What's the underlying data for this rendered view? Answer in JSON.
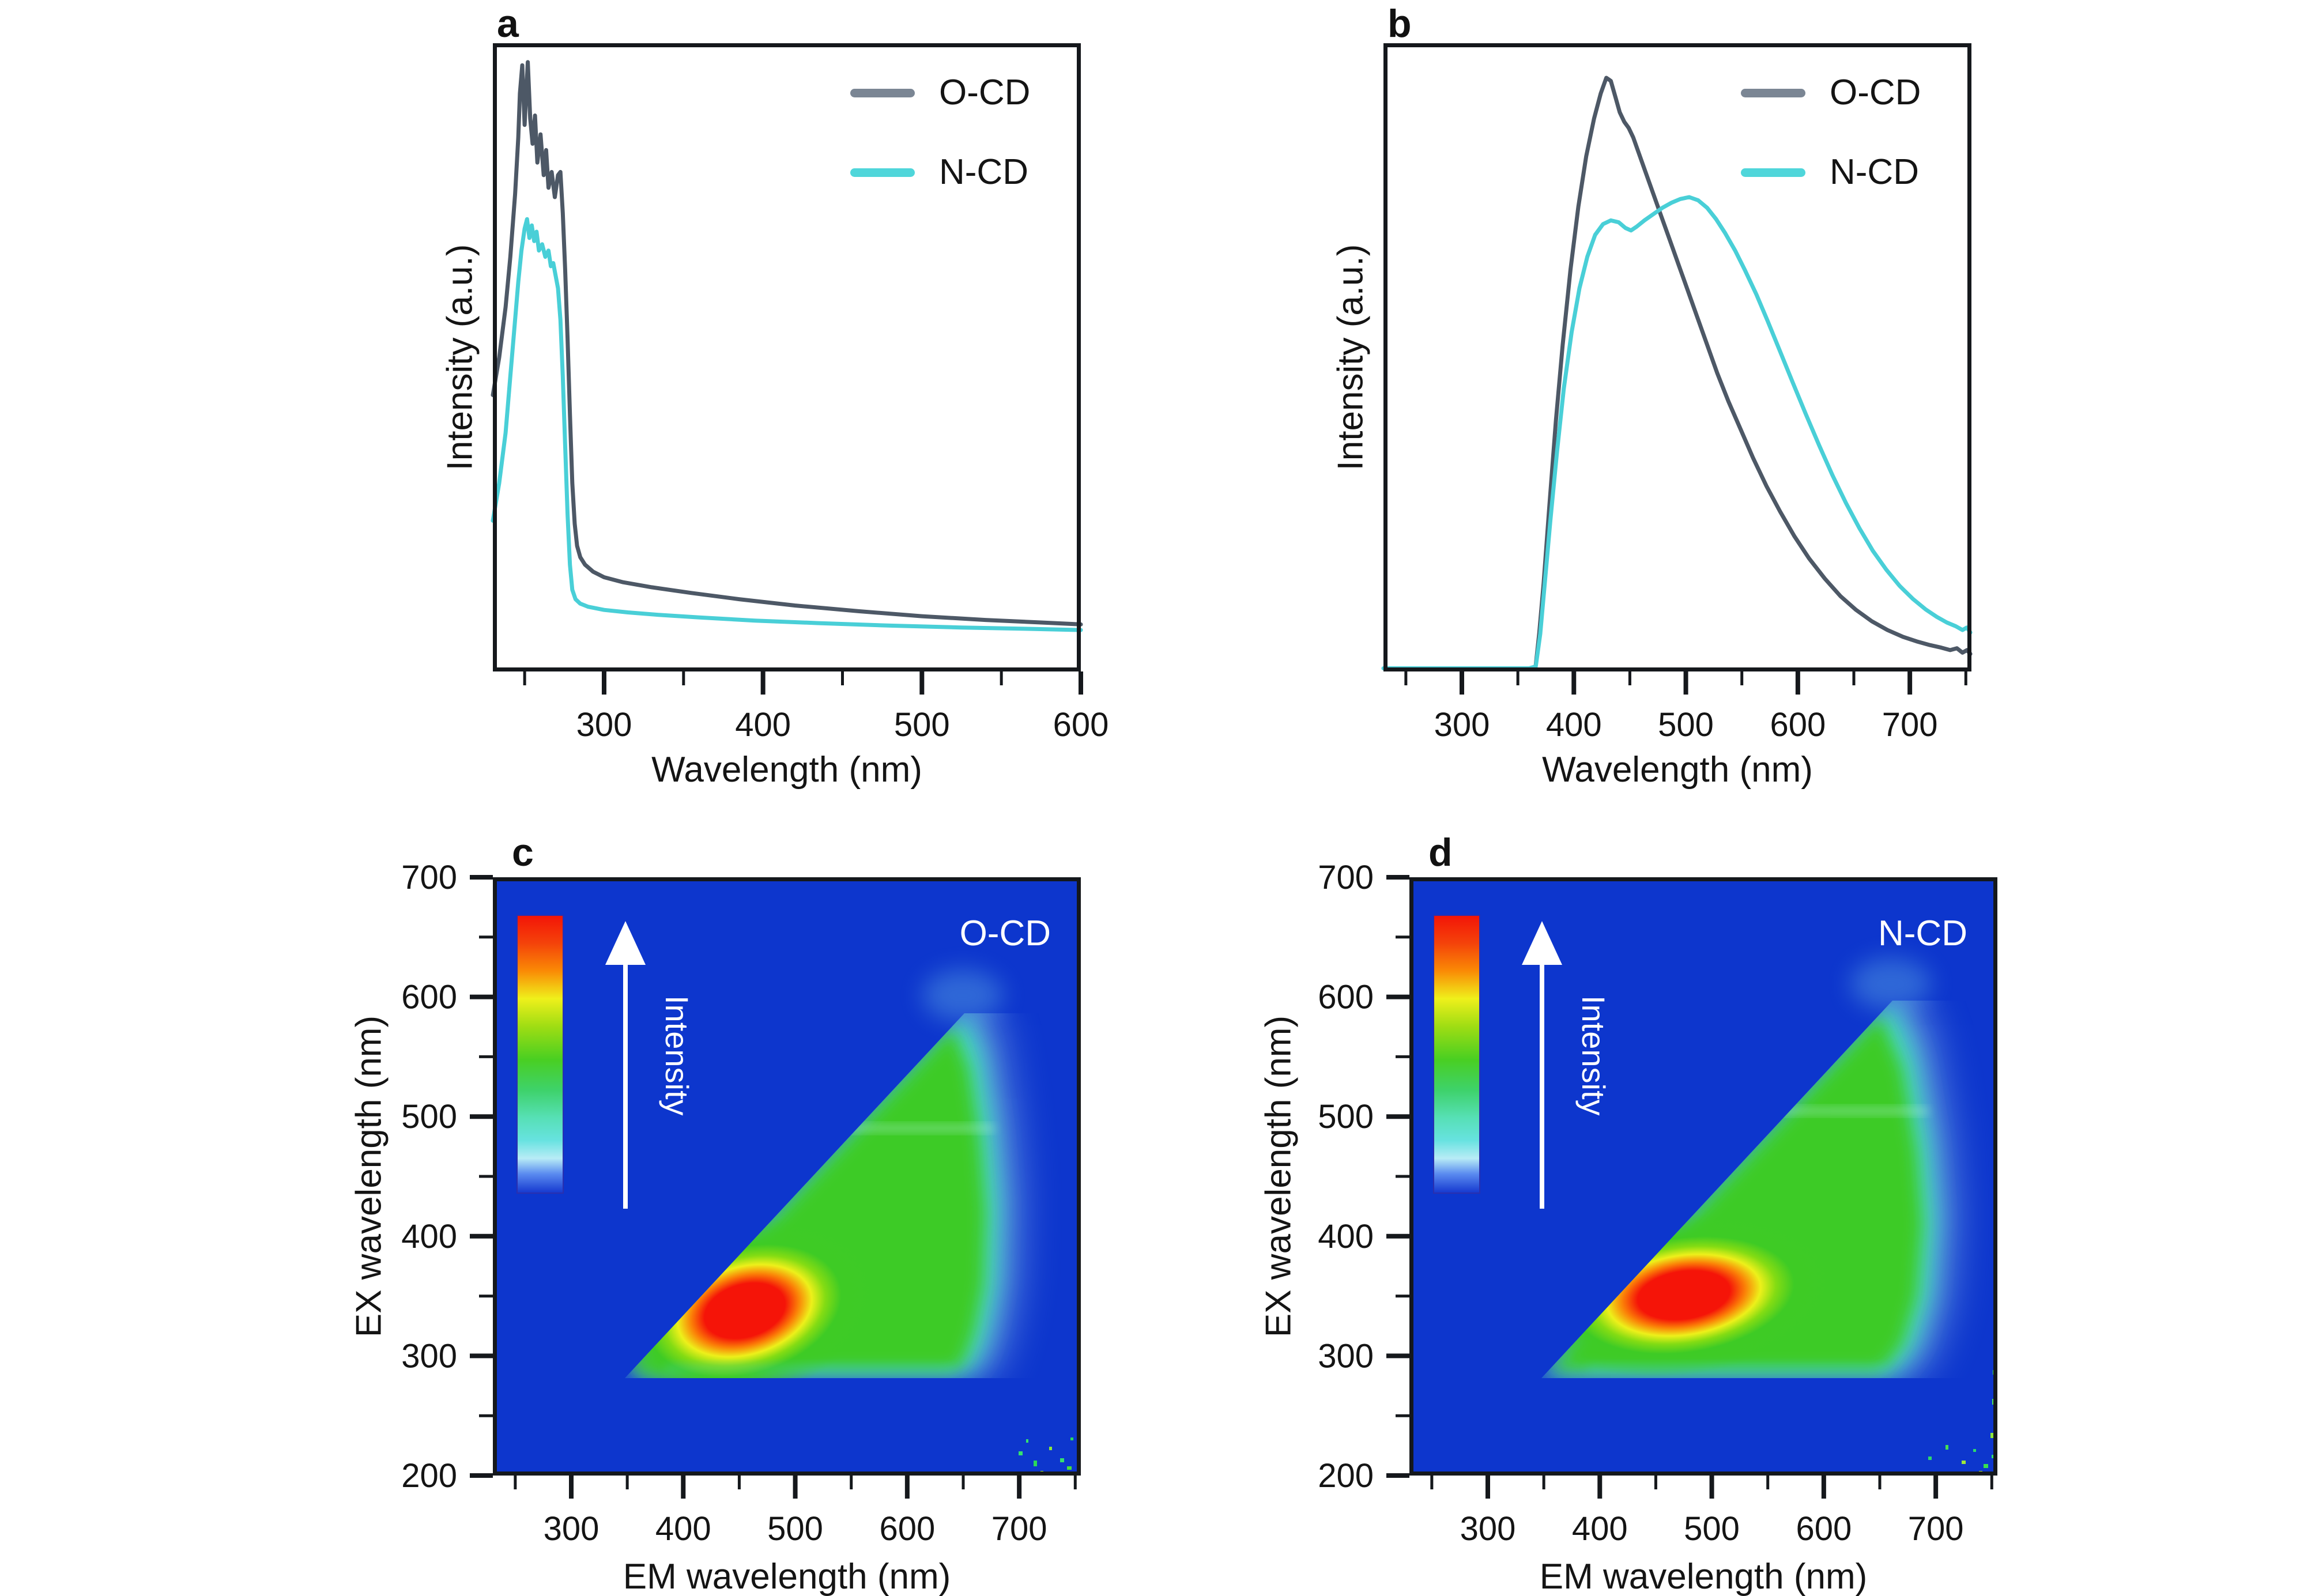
{
  "colors": {
    "background": "#ffffff",
    "axis": "#15181c",
    "text": "#141414",
    "heatmap_background": "#0d36cd",
    "annotation_text": "#ffffff"
  },
  "chart_data": [
    {
      "id": "a",
      "panel_letter": "a",
      "type": "line",
      "xlabel": "Wavelength (nm)",
      "ylabel": "Intensity (a.u.)",
      "xlim": [
        230,
        600
      ],
      "x_ticks": [
        300,
        400,
        500,
        600
      ],
      "x_minor_ticks": [
        250,
        350,
        450,
        550
      ],
      "series": [
        {
          "name": "O-CD",
          "color": "#4d5866",
          "legend_color": "#7b8694",
          "peak_nm": 252,
          "points": [
            [
              230,
              44
            ],
            [
              234,
              50
            ],
            [
              238,
              58
            ],
            [
              241,
              66
            ],
            [
              244,
              76
            ],
            [
              246,
              85
            ],
            [
              247,
              92
            ],
            [
              248.5,
              96.5
            ],
            [
              250,
              87
            ],
            [
              252,
              97
            ],
            [
              253.5,
              88
            ],
            [
              255,
              84
            ],
            [
              256.5,
              88.5
            ],
            [
              258,
              81
            ],
            [
              260,
              85.5
            ],
            [
              262,
              79
            ],
            [
              263.5,
              83
            ],
            [
              265,
              77
            ],
            [
              267,
              79.5
            ],
            [
              269,
              75.5
            ],
            [
              271,
              79
            ],
            [
              272.5,
              79.5
            ],
            [
              274,
              73
            ],
            [
              275.5,
              64
            ],
            [
              277,
              53
            ],
            [
              278.5,
              41
            ],
            [
              280,
              30
            ],
            [
              281.5,
              23.5
            ],
            [
              283,
              20
            ],
            [
              285,
              18.2
            ],
            [
              288,
              17
            ],
            [
              293,
              15.9
            ],
            [
              300,
              15
            ],
            [
              312,
              14.2
            ],
            [
              330,
              13.4
            ],
            [
              355,
              12.5
            ],
            [
              385,
              11.5
            ],
            [
              420,
              10.5
            ],
            [
              460,
              9.6
            ],
            [
              500,
              8.8
            ],
            [
              540,
              8.2
            ],
            [
              575,
              7.8
            ],
            [
              600,
              7.5
            ]
          ]
        },
        {
          "name": "N-CD",
          "color": "#49cfd7",
          "legend_color": "#4fd6da",
          "peak_nm": 252,
          "points": [
            [
              230,
              24
            ],
            [
              234,
              30
            ],
            [
              238,
              38
            ],
            [
              241,
              47
            ],
            [
              244,
              56
            ],
            [
              246,
              62
            ],
            [
              248,
              67
            ],
            [
              250,
              70.5
            ],
            [
              251.5,
              72
            ],
            [
              253,
              69
            ],
            [
              254.5,
              71
            ],
            [
              256,
              68.5
            ],
            [
              257.5,
              70
            ],
            [
              259,
              67
            ],
            [
              261,
              68
            ],
            [
              263,
              66
            ],
            [
              265,
              67
            ],
            [
              266.5,
              64.5
            ],
            [
              268,
              65
            ],
            [
              269.5,
              63
            ],
            [
              271,
              61
            ],
            [
              272.5,
              56
            ],
            [
              274,
              47
            ],
            [
              275.5,
              36
            ],
            [
              277,
              25
            ],
            [
              278.5,
              17
            ],
            [
              280,
              13
            ],
            [
              282,
              11.5
            ],
            [
              285,
              10.8
            ],
            [
              290,
              10.3
            ],
            [
              300,
              9.8
            ],
            [
              315,
              9.4
            ],
            [
              335,
              9
            ],
            [
              360,
              8.6
            ],
            [
              395,
              8.1
            ],
            [
              435,
              7.7
            ],
            [
              480,
              7.3
            ],
            [
              525,
              7
            ],
            [
              565,
              6.8
            ],
            [
              600,
              6.6
            ]
          ]
        }
      ]
    },
    {
      "id": "b",
      "panel_letter": "b",
      "type": "line",
      "xlabel": "Wavelength (nm)",
      "ylabel": "Intensity (a.u.)",
      "xlim": [
        230,
        755
      ],
      "x_ticks": [
        300,
        400,
        500,
        600,
        700
      ],
      "x_minor_ticks": [
        250,
        350,
        450,
        550,
        650,
        750
      ],
      "series": [
        {
          "name": "O-CD",
          "color": "#4d5866",
          "legend_color": "#7b8694",
          "peak_nm": 430,
          "points": [
            [
              366,
              1
            ],
            [
              369,
              6
            ],
            [
              373,
              14
            ],
            [
              378,
              26
            ],
            [
              384,
              40
            ],
            [
              390,
              52
            ],
            [
              397,
              64
            ],
            [
              404,
              74
            ],
            [
              411,
              82
            ],
            [
              418,
              88
            ],
            [
              424,
              92
            ],
            [
              429,
              94.5
            ],
            [
              433,
              94
            ],
            [
              437,
              91.5
            ],
            [
              441,
              89
            ],
            [
              445,
              87.5
            ],
            [
              449,
              86.5
            ],
            [
              453,
              85
            ],
            [
              458,
              82.5
            ],
            [
              464,
              79.5
            ],
            [
              471,
              76
            ],
            [
              478,
              72.5
            ],
            [
              486,
              68.5
            ],
            [
              494,
              64.5
            ],
            [
              502,
              60.5
            ],
            [
              510,
              56.5
            ],
            [
              519,
              52
            ],
            [
              528,
              47.5
            ],
            [
              538,
              43
            ],
            [
              549,
              38.5
            ],
            [
              560,
              34
            ],
            [
              572,
              29.5
            ],
            [
              584,
              25.5
            ],
            [
              597,
              21.5
            ],
            [
              610,
              18
            ],
            [
              624,
              14.8
            ],
            [
              638,
              12
            ],
            [
              652,
              9.8
            ],
            [
              666,
              8
            ],
            [
              680,
              6.6
            ],
            [
              694,
              5.5
            ],
            [
              706,
              4.8
            ],
            [
              718,
              4.2
            ],
            [
              728,
              3.8
            ],
            [
              736,
              3.4
            ],
            [
              742,
              3.7
            ],
            [
              747,
              3
            ],
            [
              751,
              3.4
            ],
            [
              754,
              2.8
            ]
          ]
        },
        {
          "name": "N-CD",
          "color": "#49cfd7",
          "legend_color": "#4fd6da",
          "peak_nm": 505,
          "points": [
            [
              230,
              0.5
            ],
            [
              360,
              0.5
            ],
            [
              366,
              0.8
            ],
            [
              370,
              6
            ],
            [
              374,
              14
            ],
            [
              379,
              24
            ],
            [
              385,
              35
            ],
            [
              391,
              45
            ],
            [
              398,
              54
            ],
            [
              405,
              61
            ],
            [
              412,
              66
            ],
            [
              419,
              69.5
            ],
            [
              426,
              71.2
            ],
            [
              433,
              71.8
            ],
            [
              440,
              71.5
            ],
            [
              446,
              70.6
            ],
            [
              451,
              70.2
            ],
            [
              456,
              70.8
            ],
            [
              463,
              71.8
            ],
            [
              471,
              72.8
            ],
            [
              479,
              73.8
            ],
            [
              487,
              74.6
            ],
            [
              495,
              75.2
            ],
            [
              503,
              75.5
            ],
            [
              511,
              75
            ],
            [
              519,
              73.8
            ],
            [
              527,
              72
            ],
            [
              535,
              69.8
            ],
            [
              544,
              67
            ],
            [
              553,
              63.8
            ],
            [
              563,
              60
            ],
            [
              573,
              55.8
            ],
            [
              584,
              51
            ],
            [
              595,
              46.2
            ],
            [
              607,
              41
            ],
            [
              619,
              36
            ],
            [
              631,
              31.2
            ],
            [
              643,
              26.8
            ],
            [
              655,
              22.8
            ],
            [
              667,
              19.2
            ],
            [
              679,
              16.2
            ],
            [
              691,
              13.6
            ],
            [
              703,
              11.5
            ],
            [
              714,
              9.9
            ],
            [
              724,
              8.7
            ],
            [
              733,
              7.8
            ],
            [
              741,
              7.2
            ],
            [
              747,
              6.6
            ],
            [
              751,
              7
            ],
            [
              754,
              6.2
            ]
          ]
        }
      ]
    },
    {
      "id": "c",
      "panel_letter": "c",
      "type": "heatmap",
      "sample": "O-CD",
      "xlabel": "EM wavelength (nm)",
      "ylabel": "EX wavelength (nm)",
      "xlim": [
        230,
        755
      ],
      "ylim": [
        200,
        700
      ],
      "x_ticks": [
        300,
        400,
        500,
        600,
        700
      ],
      "x_minor_ticks": [
        250,
        350,
        450,
        550,
        650,
        750
      ],
      "y_ticks": [
        200,
        300,
        400,
        500,
        600,
        700
      ],
      "y_minor_ticks": [
        250,
        350,
        450,
        550,
        650
      ],
      "colorbar_label": "Intensity",
      "palette_low_to_high": [
        "#1437cf",
        "#b8ecf6",
        "#67e2e0",
        "#57e0b6",
        "#49cf22",
        "#9fdd13",
        "#eff01b",
        "#fa8a05",
        "#f31407"
      ],
      "peak": {
        "em_nm": [
          400,
          515
        ],
        "ex_nm": [
          305,
          375
        ]
      },
      "emission_onset_ex_nm": 283,
      "rayleigh_diagonal": {
        "from_em_ex": [
          355,
          288
        ],
        "to_em_ex": [
          640,
          577
        ]
      }
    },
    {
      "id": "d",
      "panel_letter": "d",
      "type": "heatmap",
      "sample": "N-CD",
      "xlabel": "EM wavelength (nm)",
      "ylabel": "EX wavelength (nm)",
      "xlim": [
        230,
        755
      ],
      "ylim": [
        200,
        700
      ],
      "x_ticks": [
        300,
        400,
        500,
        600,
        700
      ],
      "x_minor_ticks": [
        250,
        350,
        450,
        550,
        650,
        750
      ],
      "y_ticks": [
        200,
        300,
        400,
        500,
        600,
        700
      ],
      "y_minor_ticks": [
        250,
        350,
        450,
        550,
        650
      ],
      "colorbar_label": "Intensity",
      "palette_low_to_high": [
        "#1437cf",
        "#b8ecf6",
        "#67e2e0",
        "#57e0b6",
        "#49cf22",
        "#9fdd13",
        "#eff01b",
        "#fa8a05",
        "#f31407"
      ],
      "peak": {
        "em_nm": [
          425,
          545
        ],
        "ex_nm": [
          330,
          382
        ]
      },
      "emission_onset_ex_nm": 283,
      "rayleigh_diagonal": {
        "from_em_ex": [
          355,
          288
        ],
        "to_em_ex": [
          650,
          588
        ]
      }
    }
  ]
}
